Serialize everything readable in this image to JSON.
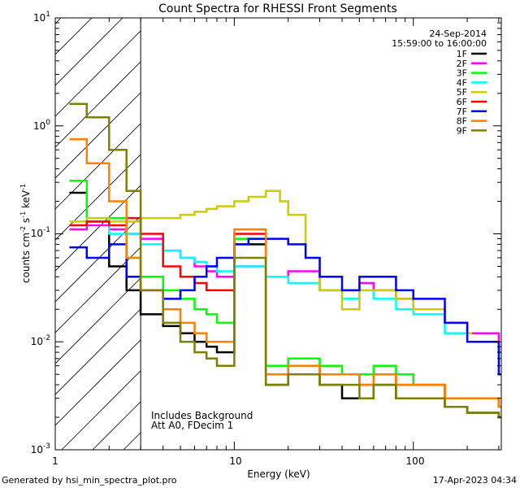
{
  "chart_data": {
    "type": "line",
    "title": "Count Spectra for RHESSI Front Segments",
    "xlabel": "Energy (keV)",
    "ylabel_parts": {
      "a": "counts cm",
      "b": "-2",
      "c": " s",
      "d": "-1",
      "e": " keV",
      "f": "-1"
    },
    "xscale": "log",
    "yscale": "log",
    "xlim": [
      1,
      310
    ],
    "ylim": [
      0.001,
      10
    ],
    "x_ticks": [
      {
        "value": 1,
        "label": "1"
      },
      {
        "value": 10,
        "label": "10"
      },
      {
        "value": 100,
        "label": "100"
      }
    ],
    "y_ticks": [
      {
        "value": 0.001,
        "base": "10",
        "exp": "-3"
      },
      {
        "value": 0.01,
        "base": "10",
        "exp": "-2"
      },
      {
        "value": 0.1,
        "base": "10",
        "exp": "-1"
      },
      {
        "value": 1,
        "base": "10",
        "exp": "0"
      },
      {
        "value": 10,
        "base": "10",
        "exp": "1"
      }
    ],
    "hatched_region_x": [
      1,
      3
    ],
    "date": "24-Sep-2014",
    "time_range": "15:59:00 to 16:00:00",
    "annotation_lines": [
      "Includes Background",
      "Att A0, FDecim 1"
    ],
    "footer_left": "Generated by hsi_min_spectra_plot.pro",
    "footer_right": "17-Apr-2023 04:34",
    "series": [
      {
        "name": "1F",
        "color": "#000000",
        "x": [
          1.2,
          1.5,
          2,
          2.5,
          3,
          4,
          5,
          6,
          7,
          8,
          10,
          15,
          20,
          30,
          40,
          50,
          60,
          80,
          100,
          150,
          200,
          300
        ],
        "y": [
          0.24,
          0.13,
          0.05,
          0.03,
          0.018,
          0.014,
          0.012,
          0.01,
          0.009,
          0.008,
          0.08,
          0.004,
          0.005,
          0.004,
          0.003,
          0.003,
          0.004,
          0.003,
          0.003,
          0.0025,
          0.0022,
          0.002
        ]
      },
      {
        "name": "2F",
        "color": "#ff00ff",
        "x": [
          1.2,
          1.5,
          2,
          2.5,
          3,
          4,
          5,
          6,
          7,
          8,
          10,
          15,
          20,
          30,
          40,
          50,
          60,
          80,
          100,
          150,
          200,
          300
        ],
        "y": [
          0.11,
          0.12,
          0.11,
          0.1,
          0.09,
          0.07,
          0.06,
          0.05,
          0.045,
          0.04,
          0.05,
          0.04,
          0.045,
          0.03,
          0.03,
          0.035,
          0.03,
          0.025,
          0.02,
          0.015,
          0.012,
          0.008
        ]
      },
      {
        "name": "3F",
        "color": "#00ff00",
        "x": [
          1.2,
          1.5,
          2,
          2.5,
          3,
          4,
          5,
          6,
          7,
          8,
          10,
          15,
          20,
          30,
          40,
          50,
          60,
          80,
          100,
          150,
          200,
          300
        ],
        "y": [
          0.31,
          0.13,
          0.14,
          0.06,
          0.04,
          0.03,
          0.025,
          0.02,
          0.018,
          0.015,
          0.09,
          0.006,
          0.007,
          0.006,
          0.005,
          0.005,
          0.006,
          0.005,
          0.004,
          0.003,
          0.003,
          0.0025
        ]
      },
      {
        "name": "4F",
        "color": "#00ffff",
        "x": [
          1.2,
          1.5,
          2,
          2.5,
          3,
          4,
          5,
          6,
          7,
          8,
          10,
          15,
          20,
          30,
          40,
          50,
          60,
          80,
          100,
          150,
          200,
          300
        ],
        "y": [
          0.12,
          0.13,
          0.1,
          0.1,
          0.08,
          0.07,
          0.06,
          0.055,
          0.05,
          0.045,
          0.05,
          0.04,
          0.035,
          0.03,
          0.025,
          0.03,
          0.025,
          0.02,
          0.018,
          0.012,
          0.01,
          0.008
        ]
      },
      {
        "name": "5F",
        "color": "#cccc00",
        "x": [
          1.2,
          1.5,
          2,
          2.5,
          3,
          4,
          5,
          6,
          7,
          8,
          10,
          12,
          15,
          18,
          20,
          25,
          30,
          40,
          50,
          60,
          80,
          100,
          150,
          200
        ],
        "y": [
          0.13,
          0.14,
          0.13,
          0.13,
          0.14,
          0.14,
          0.15,
          0.16,
          0.17,
          0.18,
          0.2,
          0.22,
          0.25,
          0.2,
          0.15,
          0.06,
          0.03,
          0.02,
          0.03,
          0.03,
          0.025,
          0.02,
          0.015,
          0.012
        ]
      },
      {
        "name": "6F",
        "color": "#ff0000",
        "x": [
          1.2,
          1.5,
          2,
          2.5,
          3,
          4,
          5,
          6,
          7,
          8,
          10,
          15,
          20,
          30,
          40,
          50,
          60,
          80,
          100,
          150,
          200,
          300
        ],
        "y": [
          0.12,
          0.13,
          0.12,
          0.14,
          0.1,
          0.05,
          0.04,
          0.035,
          0.03,
          0.03,
          0.1,
          0.005,
          0.006,
          0.005,
          0.005,
          0.004,
          0.005,
          0.004,
          0.004,
          0.003,
          0.003,
          0.0025
        ]
      },
      {
        "name": "7F",
        "color": "#0000ff",
        "x": [
          1.2,
          1.5,
          2,
          2.5,
          3,
          4,
          5,
          6,
          7,
          8,
          10,
          12,
          15,
          20,
          25,
          30,
          40,
          50,
          60,
          80,
          100,
          150,
          200,
          300
        ],
        "y": [
          0.075,
          0.06,
          0.08,
          0.04,
          0.03,
          0.025,
          0.03,
          0.04,
          0.05,
          0.06,
          0.08,
          0.09,
          0.09,
          0.08,
          0.06,
          0.04,
          0.03,
          0.04,
          0.04,
          0.03,
          0.025,
          0.015,
          0.01,
          0.005
        ]
      },
      {
        "name": "8F",
        "color": "#ff8000",
        "x": [
          1.2,
          1.5,
          2,
          2.5,
          3,
          4,
          5,
          6,
          7,
          8,
          10,
          15,
          20,
          30,
          40,
          50,
          60,
          80,
          100,
          150,
          200,
          300
        ],
        "y": [
          0.75,
          0.45,
          0.2,
          0.06,
          0.03,
          0.02,
          0.015,
          0.012,
          0.01,
          0.01,
          0.11,
          0.005,
          0.006,
          0.005,
          0.005,
          0.004,
          0.005,
          0.004,
          0.004,
          0.003,
          0.003,
          0.0025
        ]
      },
      {
        "name": "9F",
        "color": "#808000",
        "x": [
          1.2,
          1.5,
          2,
          2.5,
          3,
          4,
          5,
          6,
          7,
          8,
          10,
          15,
          20,
          30,
          40,
          50,
          60,
          80,
          100,
          150,
          200,
          300
        ],
        "y": [
          1.6,
          1.2,
          0.6,
          0.25,
          0.03,
          0.015,
          0.01,
          0.008,
          0.007,
          0.006,
          0.06,
          0.004,
          0.005,
          0.004,
          0.004,
          0.003,
          0.004,
          0.003,
          0.003,
          0.0025,
          0.0022,
          0.002
        ]
      }
    ]
  }
}
